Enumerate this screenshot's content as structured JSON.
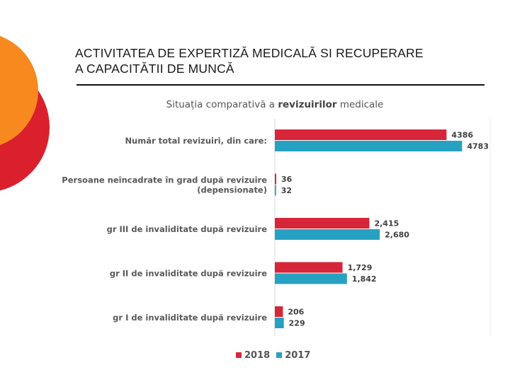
{
  "slide": {
    "title_line1": "ACTIVITATEA DE EXPERTIZĂ MEDICALĂ SI RECUPERARE",
    "title_line2": "A CAPACITĂTII DE MUNCĂ"
  },
  "colors": {
    "orange": "#f7891f",
    "red": "#da1f2d",
    "series_2018": "#d7263a",
    "series_2017": "#27a1c1"
  },
  "chart_data": {
    "type": "bar",
    "orientation": "horizontal",
    "title_prefix": "Situația comparativă a ",
    "title_bold": "revizuirilor",
    "title_suffix": " medicale",
    "categories": [
      "Număr total revizuiri, din care:",
      "Persoane neîncadrate în grad după revizuire (depensionate)",
      "gr III de invaliditate după revizuire",
      "gr II de invaliditate după revizuire",
      "gr I de invaliditate după revizuire"
    ],
    "category_lines": [
      [
        "Număr total revizuiri, din care:"
      ],
      [
        "Persoane neîncadrate în grad după revizuire",
        "(depensionate)"
      ],
      [
        "gr III de invaliditate după revizuire"
      ],
      [
        "gr II de invaliditate după revizuire"
      ],
      [
        "gr I de invaliditate după revizuire"
      ]
    ],
    "series": [
      {
        "name": "2018",
        "values": [
          4386,
          36,
          2415,
          1729,
          206
        ],
        "labels": [
          "4386",
          "36",
          "2,415",
          "1,729",
          "206"
        ]
      },
      {
        "name": "2017",
        "values": [
          4783,
          32,
          2680,
          1842,
          229
        ],
        "labels": [
          "4783",
          "32",
          "2,680",
          "1,842",
          "229"
        ]
      }
    ],
    "xlim": [
      0,
      5500
    ],
    "grid": false,
    "legend_position": "bottom"
  }
}
